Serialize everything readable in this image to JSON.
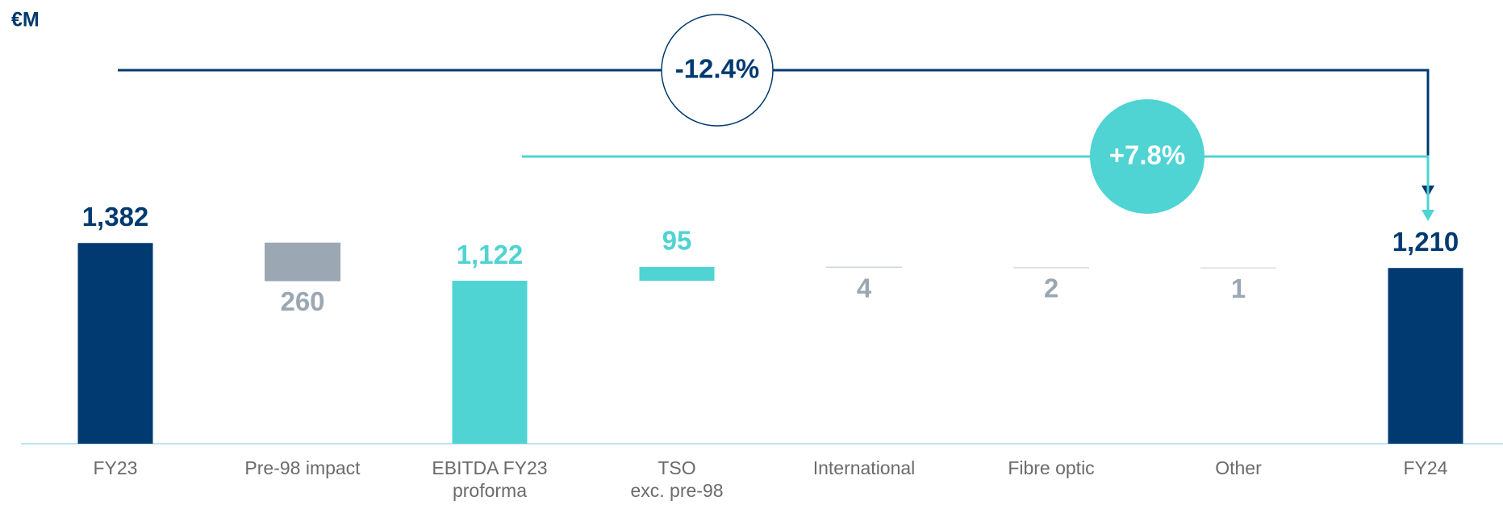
{
  "chart_data": {
    "type": "waterfall",
    "unit_label": "€M",
    "categories": [
      "FY23",
      "Pre-98 impact",
      "EBITDA FY23\nproforma",
      "TSO\nexc. pre-98",
      "International",
      "Fibre optic",
      "Other",
      "FY24"
    ],
    "values": [
      1382,
      260,
      1122,
      95,
      4,
      2,
      1,
      1210
    ],
    "value_labels": [
      "1,382",
      "260",
      "1,122",
      "95",
      "4",
      "2",
      "1",
      "1,210"
    ],
    "measure": [
      "total",
      "decrease",
      "total",
      "increase",
      "decrease",
      "decrease",
      "decrease",
      "total"
    ],
    "colors": [
      "#003a70",
      "#9ba7b3",
      "#4fd3d3",
      "#4fd3d3",
      "#d3d8dd",
      "#d3d8dd",
      "#d3d8dd",
      "#003a70"
    ],
    "ylim": [
      0,
      1500
    ],
    "annotations": [
      "-12.4%",
      "+7.8%"
    ]
  }
}
